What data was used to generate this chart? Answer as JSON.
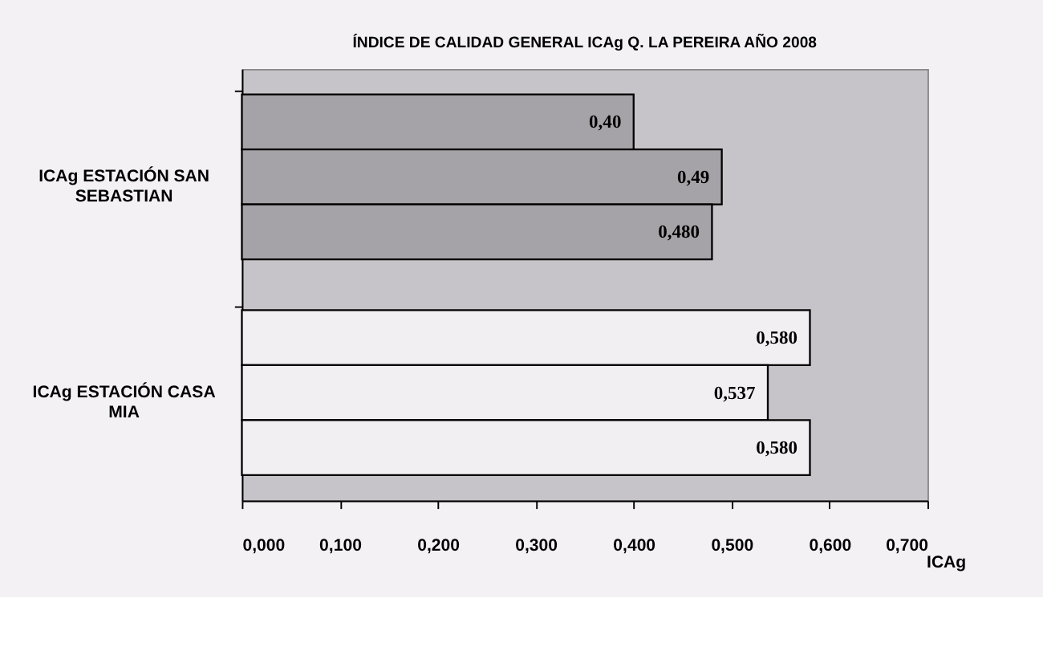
{
  "chart_data": {
    "type": "bar",
    "orientation": "horizontal",
    "title": "ÍNDICE DE CALIDAD GENERAL ICAg Q. LA PEREIRA AÑO 2008",
    "xlabel": "ICAg",
    "categories": [
      "ICAg ESTACIÓN SAN SEBASTIAN",
      "ICAg ESTACIÓN CASA MIA"
    ],
    "series": [
      {
        "colors": [
          "#a5a3a7",
          "#f1eff2"
        ],
        "values": [
          0.4,
          0.58
        ],
        "value_labels": [
          "0,40",
          "0,580"
        ]
      },
      {
        "colors": [
          "#a5a3a7",
          "#f1eff2"
        ],
        "values": [
          0.49,
          0.537
        ],
        "value_labels": [
          "0,49",
          "0,537"
        ]
      },
      {
        "colors": [
          "#a5a3a7",
          "#f1eff2"
        ],
        "values": [
          0.48,
          0.58
        ],
        "value_labels": [
          "0,480",
          "0,580"
        ]
      }
    ],
    "xlim": [
      0,
      0.7
    ],
    "xticks": [
      {
        "value": 0,
        "label": "0,000"
      },
      {
        "value": 0.1,
        "label": "0,100"
      },
      {
        "value": 0.2,
        "label": "0,200"
      },
      {
        "value": 0.3,
        "label": "0,300"
      },
      {
        "value": 0.4,
        "label": "0,400"
      },
      {
        "value": 0.5,
        "label": "0,500"
      },
      {
        "value": 0.6,
        "label": "0,600"
      },
      {
        "value": 0.7,
        "label": "0,700"
      }
    ],
    "grid": false
  }
}
